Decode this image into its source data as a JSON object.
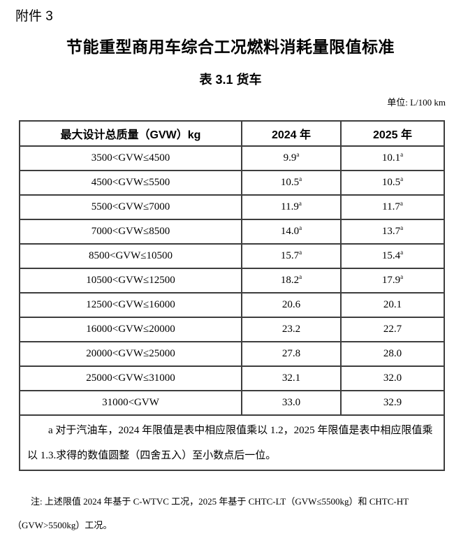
{
  "page": {
    "attachment_label": "附件 3",
    "main_title": "节能重型商用车综合工况燃料消耗量限值标准",
    "table_caption": "表 3.1 货车",
    "unit_label": "单位: L/100 km"
  },
  "table": {
    "headers": {
      "gvw": "最大设计总质量（GVW）kg",
      "y2024": "2024 年",
      "y2025": "2025 年"
    },
    "rows": [
      {
        "gvw": "3500<GVW≤4500",
        "v2024": "9.9",
        "v2024_sup": "a",
        "v2025": "10.1",
        "v2025_sup": "a"
      },
      {
        "gvw": "4500<GVW≤5500",
        "v2024": "10.5",
        "v2024_sup": "a",
        "v2025": "10.5",
        "v2025_sup": "a"
      },
      {
        "gvw": "5500<GVW≤7000",
        "v2024": "11.9",
        "v2024_sup": "a",
        "v2025": "11.7",
        "v2025_sup": "a"
      },
      {
        "gvw": "7000<GVW≤8500",
        "v2024": "14.0",
        "v2024_sup": "a",
        "v2025": "13.7",
        "v2025_sup": "a"
      },
      {
        "gvw": "8500<GVW≤10500",
        "v2024": "15.7",
        "v2024_sup": "a",
        "v2025": "15.4",
        "v2025_sup": "a"
      },
      {
        "gvw": "10500<GVW≤12500",
        "v2024": "18.2",
        "v2024_sup": "a",
        "v2025": "17.9",
        "v2025_sup": "a"
      },
      {
        "gvw": "12500<GVW≤16000",
        "v2024": "20.6",
        "v2024_sup": "",
        "v2025": "20.1",
        "v2025_sup": ""
      },
      {
        "gvw": "16000<GVW≤20000",
        "v2024": "23.2",
        "v2024_sup": "",
        "v2025": "22.7",
        "v2025_sup": ""
      },
      {
        "gvw": "20000<GVW≤25000",
        "v2024": "27.8",
        "v2024_sup": "",
        "v2025": "28.0",
        "v2025_sup": ""
      },
      {
        "gvw": "25000<GVW≤31000",
        "v2024": "32.1",
        "v2024_sup": "",
        "v2025": "32.0",
        "v2025_sup": ""
      },
      {
        "gvw": "31000<GVW",
        "v2024": "33.0",
        "v2024_sup": "",
        "v2025": "32.9",
        "v2025_sup": ""
      }
    ],
    "footnote": "a 对于汽油车，2024 年限值是表中相应限值乘以 1.2，2025 年限值是表中相应限值乘以 1.3.求得的数值圆整（四舍五入）至小数点后一位。"
  },
  "note": "注: 上述限值 2024 年基于 C-WTVC 工况，2025 年基于 CHTC-LT（GVW≤5500kg）和 CHTC-HT（GVW>5500kg）工况。"
}
